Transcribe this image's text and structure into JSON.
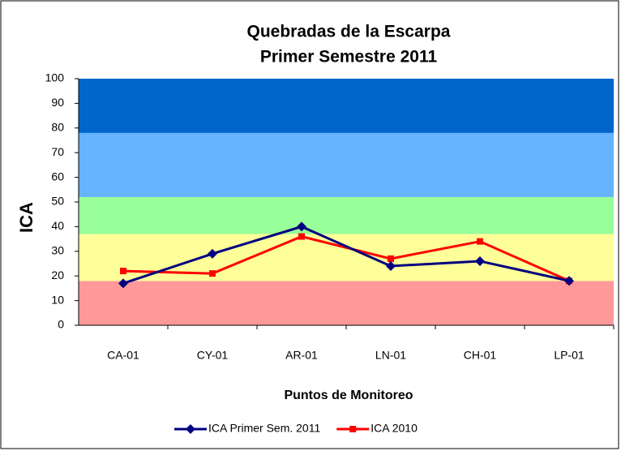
{
  "chart_data": {
    "type": "line",
    "title": [
      "Quebradas de la Escarpa",
      "Primer Semestre 2011"
    ],
    "y_label": "ICA",
    "x_label": "Puntos de Monitoreo",
    "categories": [
      "CA-01",
      "CY-01",
      "AR-01",
      "LN-01",
      "CH-01",
      "LP-01"
    ],
    "series": [
      {
        "name": "ICA Primer Sem. 2011",
        "color": "#000080",
        "marker": "diamond",
        "values": [
          17,
          29,
          40,
          24,
          26,
          18
        ]
      },
      {
        "name": "ICA 2010",
        "color": "#ff0000",
        "marker": "square",
        "values": [
          22,
          21,
          36,
          27,
          34,
          18
        ]
      }
    ],
    "bands": [
      {
        "from": 0,
        "to": 18,
        "color": "#ff9999"
      },
      {
        "from": 18,
        "to": 37,
        "color": "#ffff99"
      },
      {
        "from": 37,
        "to": 52,
        "color": "#99ff99"
      },
      {
        "from": 52,
        "to": 78,
        "color": "#66b3ff"
      },
      {
        "from": 78,
        "to": 100,
        "color": "#0066cc"
      }
    ],
    "ylim": [
      0,
      100
    ],
    "yticks": [
      0,
      10,
      20,
      30,
      40,
      50,
      60,
      70,
      80,
      90,
      100
    ],
    "legend": "bottom"
  }
}
